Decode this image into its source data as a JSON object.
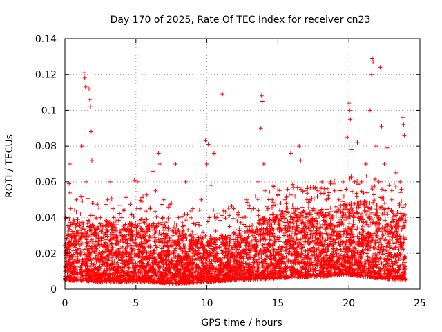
{
  "chart_data": {
    "type": "scatter",
    "title": "Day 170 of 2025, Rate Of TEC Index for receiver cn23",
    "xlabel": "GPS time / hours",
    "ylabel": "ROTI / TECUs",
    "xlim": [
      0,
      25
    ],
    "ylim": [
      0,
      0.14
    ],
    "x_ticks": [
      0,
      5,
      10,
      15,
      20,
      25
    ],
    "x_tick_labels": [
      "0",
      "5",
      "10",
      "15",
      "20",
      "25"
    ],
    "y_ticks": [
      0,
      0.02,
      0.04,
      0.06,
      0.08,
      0.1,
      0.12,
      0.14
    ],
    "y_tick_labels": [
      "0",
      "0.02",
      "0.04",
      "0.06",
      "0.08",
      "0.1",
      "0.12",
      "0.14"
    ],
    "grid": true,
    "marker": "plus",
    "color": "#ff0000",
    "series": [
      {
        "values_note": "",
        "points": [
          [
            0.1,
            0.018
          ],
          [
            0.2,
            0.032
          ],
          [
            0.3,
            0.059
          ],
          [
            0.35,
            0.07
          ],
          [
            0.4,
            0.045
          ],
          [
            0.5,
            0.025
          ],
          [
            0.6,
            0.012
          ],
          [
            0.7,
            0.03
          ],
          [
            0.8,
            0.05
          ],
          [
            0.9,
            0.038
          ],
          [
            1.0,
            0.022
          ],
          [
            1.1,
            0.042
          ],
          [
            1.2,
            0.08
          ],
          [
            1.35,
            0.121
          ],
          [
            1.4,
            0.118
          ],
          [
            1.45,
            0.113
          ],
          [
            1.5,
            0.06
          ],
          [
            1.6,
            0.035
          ],
          [
            1.7,
            0.112
          ],
          [
            1.75,
            0.106
          ],
          [
            1.8,
            0.102
          ],
          [
            1.85,
            0.088
          ],
          [
            1.9,
            0.072
          ],
          [
            2.0,
            0.048
          ],
          [
            2.2,
            0.03
          ],
          [
            2.5,
            0.04
          ],
          [
            2.8,
            0.025
          ],
          [
            3.0,
            0.05
          ],
          [
            3.2,
            0.06
          ],
          [
            3.4,
            0.045
          ],
          [
            3.6,
            0.03
          ],
          [
            3.8,
            0.02
          ],
          [
            4.0,
            0.04
          ],
          [
            4.3,
            0.052
          ],
          [
            4.6,
            0.03
          ],
          [
            4.9,
            0.061
          ],
          [
            5.1,
            0.06
          ],
          [
            5.3,
            0.045
          ],
          [
            5.5,
            0.052
          ],
          [
            5.8,
            0.035
          ],
          [
            6.0,
            0.045
          ],
          [
            6.2,
            0.066
          ],
          [
            6.4,
            0.055
          ],
          [
            6.6,
            0.076
          ],
          [
            6.7,
            0.07
          ],
          [
            6.9,
            0.04
          ],
          [
            7.2,
            0.03
          ],
          [
            7.5,
            0.048
          ],
          [
            7.8,
            0.07
          ],
          [
            8.0,
            0.04
          ],
          [
            8.3,
            0.035
          ],
          [
            8.5,
            0.06
          ],
          [
            8.8,
            0.03
          ],
          [
            9.0,
            0.045
          ],
          [
            9.3,
            0.02
          ],
          [
            9.6,
            0.05
          ],
          [
            9.9,
            0.083
          ],
          [
            10.0,
            0.07
          ],
          [
            10.1,
            0.081
          ],
          [
            10.3,
            0.058
          ],
          [
            10.5,
            0.076
          ],
          [
            10.7,
            0.04
          ],
          [
            11.0,
            0.03
          ],
          [
            11.1,
            0.109
          ],
          [
            11.3,
            0.025
          ],
          [
            11.6,
            0.035
          ],
          [
            11.9,
            0.045
          ],
          [
            12.2,
            0.03
          ],
          [
            12.5,
            0.04
          ],
          [
            12.8,
            0.05
          ],
          [
            13.0,
            0.035
          ],
          [
            13.3,
            0.045
          ],
          [
            13.6,
            0.06
          ],
          [
            13.8,
            0.09
          ],
          [
            13.85,
            0.108
          ],
          [
            13.9,
            0.105
          ],
          [
            14.0,
            0.07
          ],
          [
            14.1,
            0.055
          ],
          [
            14.3,
            0.045
          ],
          [
            14.6,
            0.05
          ],
          [
            14.9,
            0.04
          ],
          [
            15.2,
            0.048
          ],
          [
            15.5,
            0.05
          ],
          [
            15.9,
            0.076
          ],
          [
            16.2,
            0.052
          ],
          [
            16.5,
            0.08
          ],
          [
            16.6,
            0.072
          ],
          [
            16.9,
            0.055
          ],
          [
            17.2,
            0.05
          ],
          [
            17.5,
            0.045
          ],
          [
            17.8,
            0.055
          ],
          [
            18.1,
            0.06
          ],
          [
            18.4,
            0.05
          ],
          [
            18.7,
            0.06
          ],
          [
            19.0,
            0.055
          ],
          [
            19.3,
            0.05
          ],
          [
            19.6,
            0.06
          ],
          [
            19.9,
            0.085
          ],
          [
            20.0,
            0.104
          ],
          [
            20.05,
            0.1
          ],
          [
            20.1,
            0.095
          ],
          [
            20.2,
            0.078
          ],
          [
            20.4,
            0.06
          ],
          [
            20.6,
            0.082
          ],
          [
            20.9,
            0.06
          ],
          [
            21.2,
            0.07
          ],
          [
            21.5,
            0.1
          ],
          [
            21.6,
            0.12
          ],
          [
            21.65,
            0.129
          ],
          [
            21.7,
            0.127
          ],
          [
            21.9,
            0.08
          ],
          [
            22.1,
            0.06
          ],
          [
            22.2,
            0.124
          ],
          [
            22.3,
            0.091
          ],
          [
            22.5,
            0.07
          ],
          [
            22.7,
            0.079
          ],
          [
            23.0,
            0.05
          ],
          [
            23.3,
            0.065
          ],
          [
            23.6,
            0.06
          ],
          [
            23.8,
            0.096
          ],
          [
            23.85,
            0.092
          ],
          [
            23.9,
            0.086
          ]
        ]
      }
    ],
    "density_model": {
      "x_start": 0.0,
      "x_end": 24.0,
      "count": 5200,
      "envelope": [
        [
          0,
          0.04
        ],
        [
          1,
          0.038
        ],
        [
          2,
          0.036
        ],
        [
          3,
          0.038
        ],
        [
          4,
          0.035
        ],
        [
          5,
          0.04
        ],
        [
          6,
          0.038
        ],
        [
          7,
          0.036
        ],
        [
          8,
          0.033
        ],
        [
          9,
          0.03
        ],
        [
          10,
          0.03
        ],
        [
          11,
          0.03
        ],
        [
          12,
          0.032
        ],
        [
          13,
          0.035
        ],
        [
          14,
          0.04
        ],
        [
          15,
          0.045
        ],
        [
          16,
          0.046
        ],
        [
          17,
          0.044
        ],
        [
          18,
          0.044
        ],
        [
          19,
          0.046
        ],
        [
          20,
          0.048
        ],
        [
          21,
          0.05
        ],
        [
          22,
          0.048
        ],
        [
          23,
          0.045
        ],
        [
          24,
          0.042
        ]
      ],
      "floor": [
        [
          0,
          0.005
        ],
        [
          3,
          0.004
        ],
        [
          5,
          0.004
        ],
        [
          8,
          0.003
        ],
        [
          10,
          0.004
        ],
        [
          12,
          0.005
        ],
        [
          15,
          0.006
        ],
        [
          18,
          0.007
        ],
        [
          20,
          0.008
        ],
        [
          22,
          0.006
        ],
        [
          24,
          0.005
        ]
      ]
    }
  }
}
